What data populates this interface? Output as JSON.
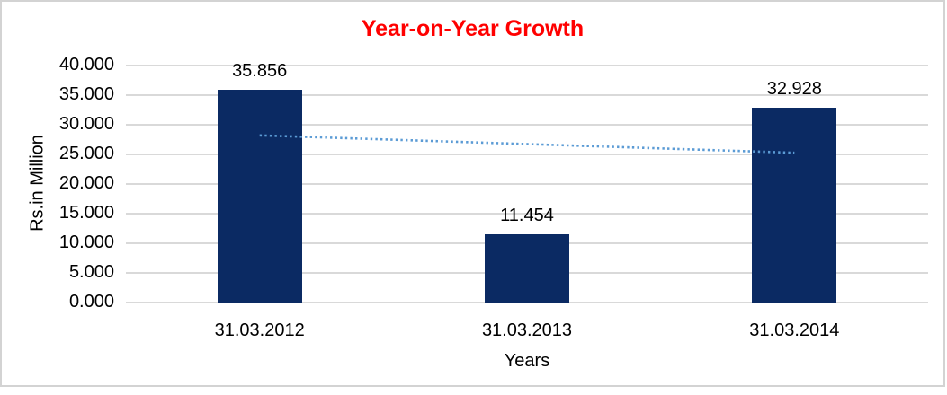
{
  "window": {
    "background_color": "#FFFFFF",
    "frame_border_color": "#D3D3D3"
  },
  "chart_data": {
    "type": "bar",
    "title": "Year-on-Year Growth",
    "title_color": "#FF0000",
    "categories": [
      "31.03.2012",
      "31.03.2013",
      "31.03.2014"
    ],
    "values": [
      35.856,
      11.454,
      32.928
    ],
    "data_labels": [
      "35.856",
      "11.454",
      "32.928"
    ],
    "xlabel": "Years",
    "ylabel": "Rs.in Million",
    "ylim": [
      0,
      40
    ],
    "ytick_values": [
      40,
      35,
      30,
      25,
      20,
      15,
      10,
      5,
      0
    ],
    "ytick_labels": [
      "40.000",
      "35.000",
      "30.000",
      "25.000",
      "20.000",
      "15.000",
      "10.000",
      "5.000",
      "0.000"
    ],
    "grid": true,
    "legend_position": "none",
    "bar_color": "#0B2A63",
    "gridline_color": "#D9D9D9",
    "axis_text_color": "#000000",
    "trendline": {
      "type": "linear",
      "style": "dotted",
      "color": "#5B9BD5",
      "start_value": 28.21,
      "end_value": 25.28,
      "spans": "first-bar-center-to-last-bar-center"
    }
  }
}
